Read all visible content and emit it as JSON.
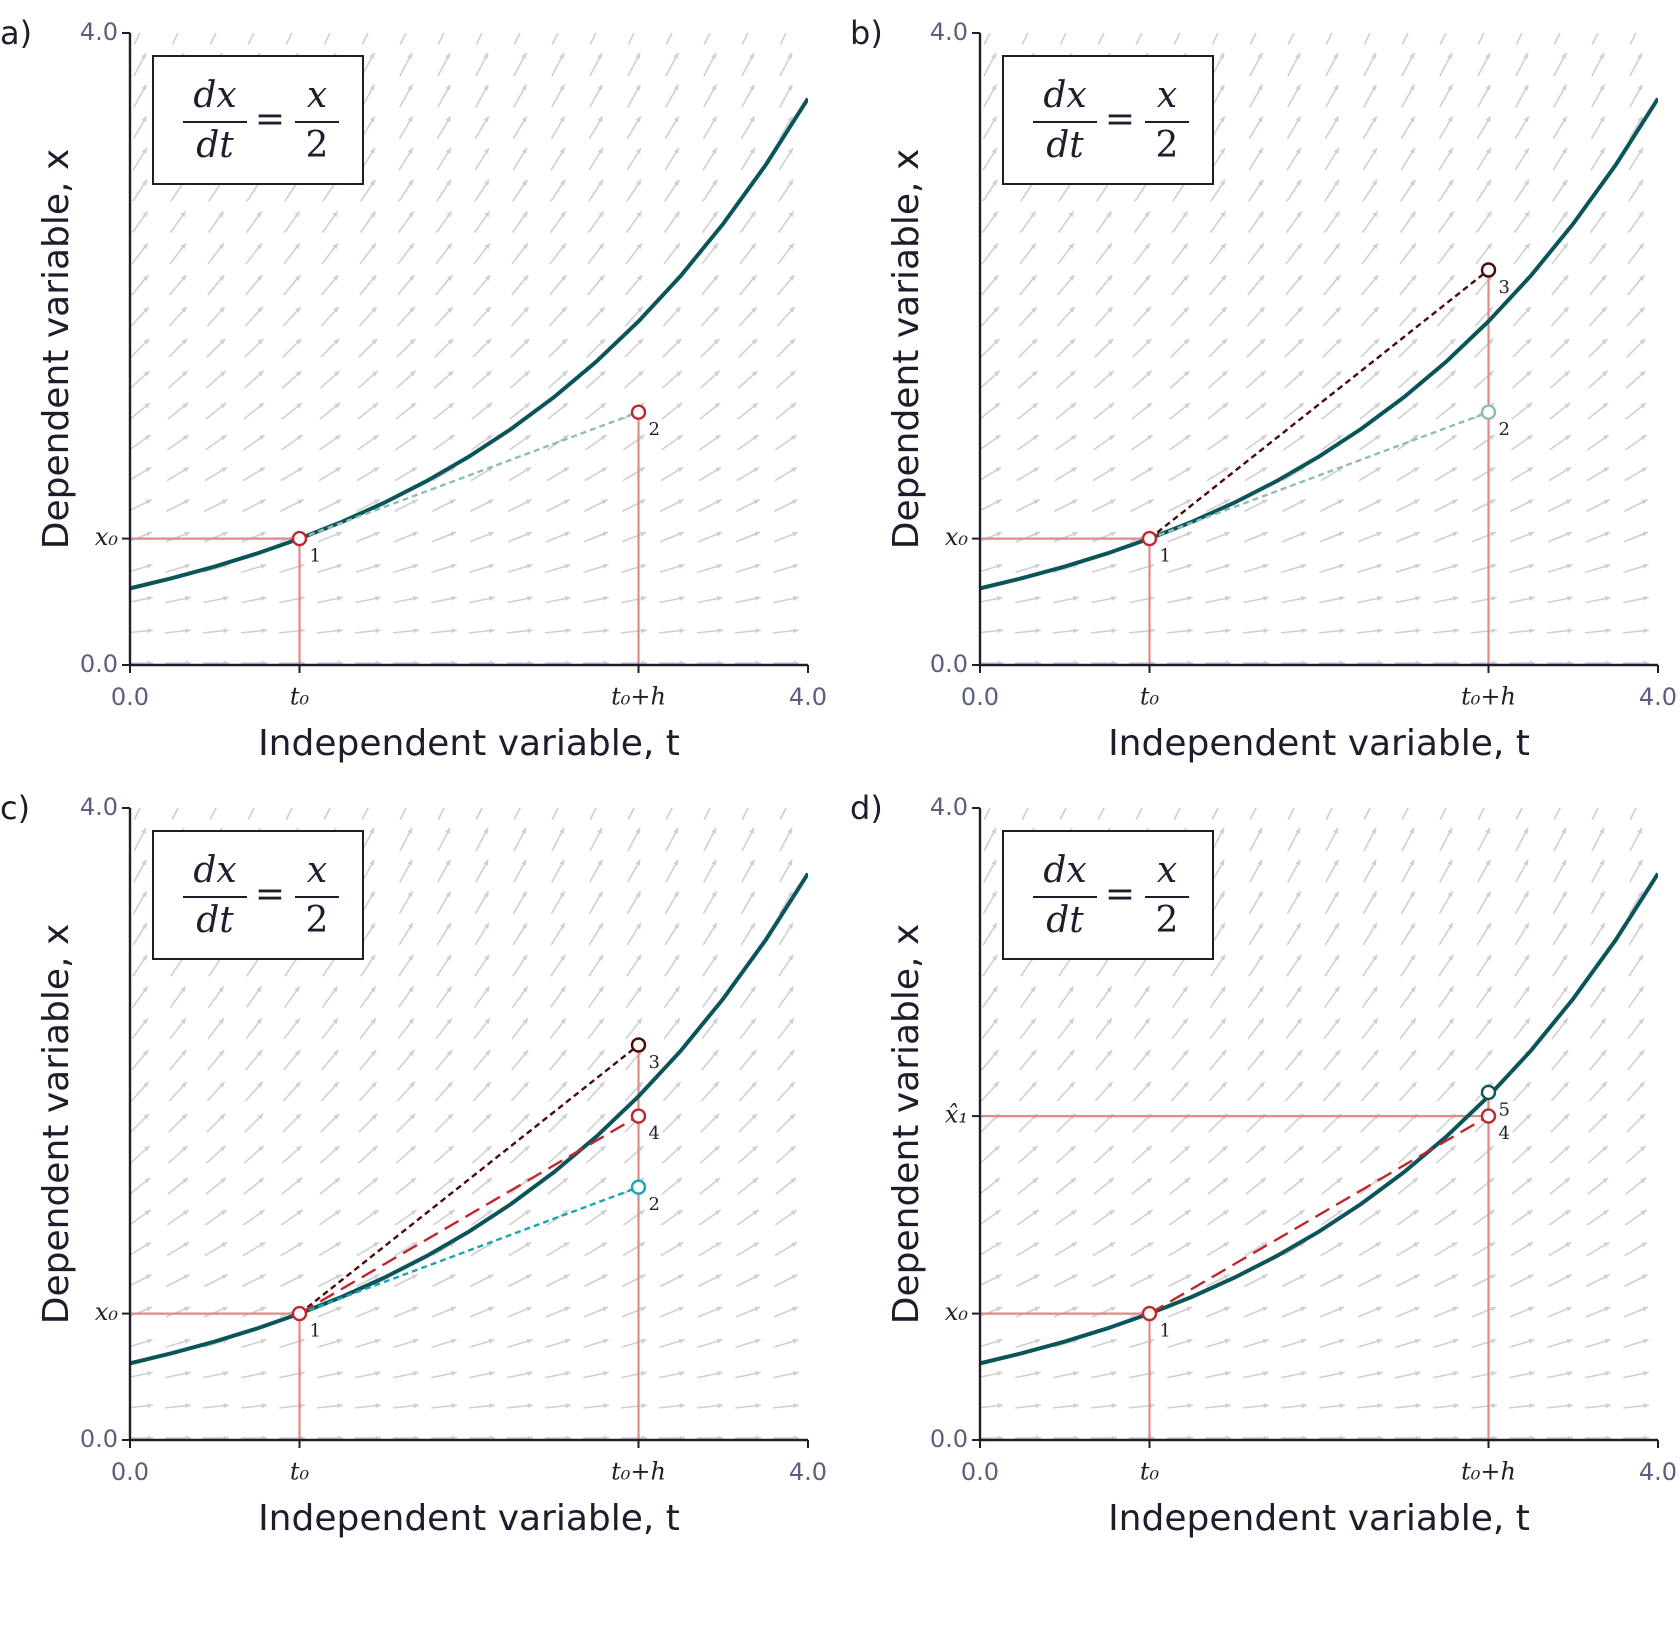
{
  "chart_data": [
    {
      "type": "line",
      "panel_label": "a)",
      "equation": {
        "lhs_num": "dx",
        "lhs_den": "dt",
        "sign": "=",
        "rhs_num": "x",
        "rhs_den": "2"
      },
      "xlabel": "Independent variable, t",
      "ylabel": "Dependent variable, x",
      "xlim": [
        0,
        4
      ],
      "ylim": [
        0,
        4
      ],
      "xticks": [
        {
          "value": 0,
          "label": "0.0"
        },
        {
          "value": 1,
          "label": "t₀"
        },
        {
          "value": 3,
          "label": "t₀+h"
        },
        {
          "value": 4,
          "label": "4.0"
        }
      ],
      "yticks": [
        {
          "value": 0,
          "label": "0.0"
        },
        {
          "value": 0.8,
          "label": "x₀"
        },
        {
          "value": 4,
          "label": "4.0"
        }
      ],
      "series": [
        {
          "color": "#0b5559",
          "dash": "solid",
          "x": [
            0,
            0.25,
            0.5,
            0.75,
            1,
            1.25,
            1.5,
            1.75,
            2,
            2.25,
            2.5,
            2.75,
            3,
            3.25,
            3.5,
            3.75,
            4
          ],
          "values": [
            0.485,
            0.55,
            0.623,
            0.706,
            0.8,
            0.906,
            1.027,
            1.164,
            1.319,
            1.495,
            1.694,
            1.919,
            2.175,
            2.464,
            2.793,
            3.164,
            3.585
          ]
        },
        {
          "color": "#8fbcb9",
          "dash": "short",
          "x": [
            1,
            3
          ],
          "values": [
            0.8,
            1.6
          ]
        }
      ],
      "points": [
        {
          "x": 1,
          "y": 0.8,
          "label": "1",
          "color": "#c0272d"
        },
        {
          "x": 3,
          "y": 1.6,
          "label": "2",
          "color": "#c0272d"
        }
      ]
    },
    {
      "type": "line",
      "panel_label": "b)",
      "equation": {
        "lhs_num": "dx",
        "lhs_den": "dt",
        "sign": "=",
        "rhs_num": "x",
        "rhs_den": "2"
      },
      "xlabel": "Independent variable, t",
      "ylabel": "Dependent variable, x",
      "xlim": [
        0,
        4
      ],
      "ylim": [
        0,
        4
      ],
      "xticks": [
        {
          "value": 0,
          "label": "0.0"
        },
        {
          "value": 1,
          "label": "t₀"
        },
        {
          "value": 3,
          "label": "t₀+h"
        },
        {
          "value": 4,
          "label": "4.0"
        }
      ],
      "yticks": [
        {
          "value": 0,
          "label": "0.0"
        },
        {
          "value": 0.8,
          "label": "x₀"
        },
        {
          "value": 4,
          "label": "4.0"
        }
      ],
      "series": [
        {
          "color": "#0b5559",
          "dash": "solid",
          "x": [
            0,
            0.25,
            0.5,
            0.75,
            1,
            1.25,
            1.5,
            1.75,
            2,
            2.25,
            2.5,
            2.75,
            3,
            3.25,
            3.5,
            3.75,
            4
          ],
          "values": [
            0.485,
            0.55,
            0.623,
            0.706,
            0.8,
            0.906,
            1.027,
            1.164,
            1.319,
            1.495,
            1.694,
            1.919,
            2.175,
            2.464,
            2.793,
            3.164,
            3.585
          ]
        },
        {
          "color": "#8fbcb9",
          "dash": "short",
          "x": [
            1,
            3
          ],
          "values": [
            0.8,
            1.6
          ]
        },
        {
          "color": "#4a0a0a",
          "dash": "short",
          "x": [
            1,
            3
          ],
          "values": [
            0.8,
            2.5
          ]
        }
      ],
      "points": [
        {
          "x": 1,
          "y": 0.8,
          "label": "1",
          "color": "#c0272d"
        },
        {
          "x": 3,
          "y": 1.6,
          "label": "2",
          "color": "#8fbcb9"
        },
        {
          "x": 3,
          "y": 2.5,
          "label": "3",
          "color": "#4a0a0a"
        }
      ]
    },
    {
      "type": "line",
      "panel_label": "c)",
      "equation": {
        "lhs_num": "dx",
        "lhs_den": "dt",
        "sign": "=",
        "rhs_num": "x",
        "rhs_den": "2"
      },
      "xlabel": "Independent variable, t",
      "ylabel": "Dependent variable, x",
      "xlim": [
        0,
        4
      ],
      "ylim": [
        0,
        4
      ],
      "xticks": [
        {
          "value": 0,
          "label": "0.0"
        },
        {
          "value": 1,
          "label": "t₀"
        },
        {
          "value": 3,
          "label": "t₀+h"
        },
        {
          "value": 4,
          "label": "4.0"
        }
      ],
      "yticks": [
        {
          "value": 0,
          "label": "0.0"
        },
        {
          "value": 0.8,
          "label": "x₀"
        },
        {
          "value": 4,
          "label": "4.0"
        }
      ],
      "series": [
        {
          "color": "#0b5559",
          "dash": "solid",
          "x": [
            0,
            0.25,
            0.5,
            0.75,
            1,
            1.25,
            1.5,
            1.75,
            2,
            2.25,
            2.5,
            2.75,
            3,
            3.25,
            3.5,
            3.75,
            4
          ],
          "values": [
            0.485,
            0.55,
            0.623,
            0.706,
            0.8,
            0.906,
            1.027,
            1.164,
            1.319,
            1.495,
            1.694,
            1.919,
            2.175,
            2.464,
            2.793,
            3.164,
            3.585
          ]
        },
        {
          "color": "#4a0a0a",
          "dash": "short",
          "x": [
            1,
            3
          ],
          "values": [
            0.8,
            2.5
          ]
        },
        {
          "color": "#c0272d",
          "dash": "long",
          "x": [
            1,
            3
          ],
          "values": [
            0.8,
            2.05
          ]
        },
        {
          "color": "#1aa6b0",
          "dash": "short",
          "x": [
            1,
            3
          ],
          "values": [
            0.8,
            1.6
          ]
        }
      ],
      "points": [
        {
          "x": 1,
          "y": 0.8,
          "label": "1",
          "color": "#c0272d"
        },
        {
          "x": 3,
          "y": 2.5,
          "label": "3",
          "color": "#4a0a0a"
        },
        {
          "x": 3,
          "y": 2.05,
          "label": "4",
          "color": "#c0272d"
        },
        {
          "x": 3,
          "y": 1.6,
          "label": "2",
          "color": "#1aa6b0"
        }
      ]
    },
    {
      "type": "line",
      "panel_label": "d)",
      "equation": {
        "lhs_num": "dx",
        "lhs_den": "dt",
        "sign": "=",
        "rhs_num": "x",
        "rhs_den": "2"
      },
      "xlabel": "Independent variable, t",
      "ylabel": "Dependent variable, x",
      "xlim": [
        0,
        4
      ],
      "ylim": [
        0,
        4
      ],
      "xticks": [
        {
          "value": 0,
          "label": "0.0"
        },
        {
          "value": 1,
          "label": "t₀"
        },
        {
          "value": 3,
          "label": "t₀+h"
        },
        {
          "value": 4,
          "label": "4.0"
        }
      ],
      "yticks": [
        {
          "value": 0,
          "label": "0.0"
        },
        {
          "value": 0.8,
          "label": "x₀"
        },
        {
          "value": 2.05,
          "label": "x̂₁"
        },
        {
          "value": 4,
          "label": "4.0"
        }
      ],
      "series": [
        {
          "color": "#0b5559",
          "dash": "solid",
          "x": [
            0,
            0.25,
            0.5,
            0.75,
            1,
            1.25,
            1.5,
            1.75,
            2,
            2.25,
            2.5,
            2.75,
            3,
            3.25,
            3.5,
            3.75,
            4
          ],
          "values": [
            0.485,
            0.55,
            0.623,
            0.706,
            0.8,
            0.906,
            1.027,
            1.164,
            1.319,
            1.495,
            1.694,
            1.919,
            2.175,
            2.464,
            2.793,
            3.164,
            3.585
          ]
        },
        {
          "color": "#c0272d",
          "dash": "long",
          "x": [
            1,
            3
          ],
          "values": [
            0.8,
            2.05
          ]
        }
      ],
      "points": [
        {
          "x": 1,
          "y": 0.8,
          "label": "1",
          "color": "#c0272d"
        },
        {
          "x": 3,
          "y": 2.05,
          "label": "4",
          "color": "#c0272d"
        },
        {
          "x": 3,
          "y": 2.2,
          "label": "5",
          "color": "#0b5559"
        }
      ]
    }
  ]
}
